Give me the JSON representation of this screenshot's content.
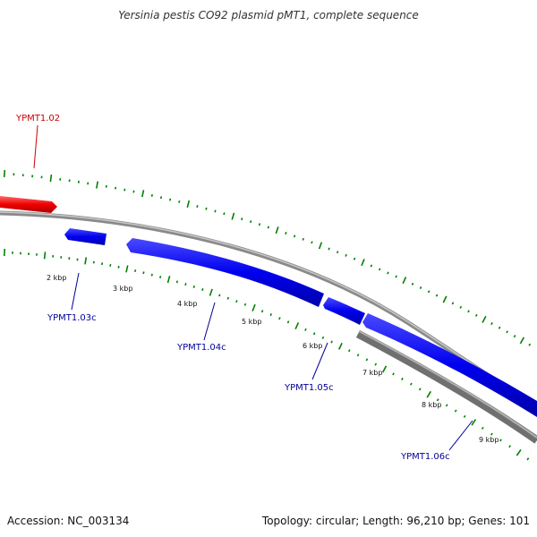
{
  "title": "Yersinia pestis CO92 plasmid pMT1, complete sequence",
  "footer": {
    "accession": "Accession: NC_003134",
    "summary": "Topology: circular; Length: 96,210 bp; Genes: 101"
  },
  "tick_labels": [
    "2 kbp",
    "3 kbp",
    "4 kbp",
    "5 kbp",
    "6 kbp",
    "7 kbp",
    "8 kbp",
    "9 kbp"
  ],
  "genes": [
    {
      "label": "YPMT1.02",
      "strand": "forward"
    },
    {
      "label": "YPMT1.03c",
      "strand": "reverse"
    },
    {
      "label": "YPMT1.04c",
      "strand": "reverse"
    },
    {
      "label": "YPMT1.05c",
      "strand": "reverse"
    },
    {
      "label": "YPMT1.06c",
      "strand": "reverse"
    }
  ],
  "colors": {
    "forward_gene": "#ff0000",
    "reverse_gene": "#0000ff",
    "backbone": "#808080",
    "ticks": "#008000",
    "forward_label": "#cc0000",
    "reverse_label": "#000099"
  }
}
